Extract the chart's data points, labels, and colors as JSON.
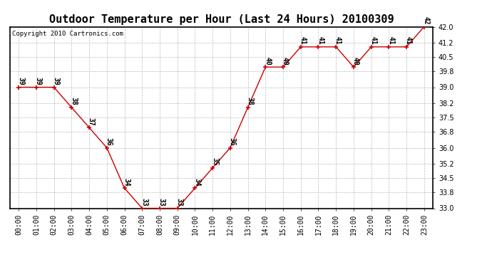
{
  "title": "Outdoor Temperature per Hour (Last 24 Hours) 20100309",
  "copyright": "Copyright 2010 Cartronics.com",
  "hours": [
    "00:00",
    "01:00",
    "02:00",
    "03:00",
    "04:00",
    "05:00",
    "06:00",
    "07:00",
    "08:00",
    "09:00",
    "10:00",
    "11:00",
    "12:00",
    "13:00",
    "14:00",
    "15:00",
    "16:00",
    "17:00",
    "18:00",
    "19:00",
    "20:00",
    "21:00",
    "22:00",
    "23:00"
  ],
  "temps": [
    39,
    39,
    39,
    38,
    37,
    36,
    34,
    33,
    33,
    33,
    34,
    35,
    36,
    38,
    40,
    40,
    41,
    41,
    41,
    40,
    41,
    41,
    41,
    42
  ],
  "line_color": "#cc0000",
  "marker_color": "#cc0000",
  "bg_color": "#ffffff",
  "grid_color": "#bbbbbb",
  "ylim_min": 33.0,
  "ylim_max": 42.0,
  "yticks": [
    33.0,
    33.8,
    34.5,
    35.2,
    36.0,
    36.8,
    37.5,
    38.2,
    39.0,
    39.8,
    40.5,
    41.2,
    42.0
  ],
  "title_fontsize": 11,
  "label_fontsize": 7,
  "copyright_fontsize": 6.5,
  "tick_fontsize": 7,
  "fig_width": 6.9,
  "fig_height": 3.75,
  "dpi": 100
}
